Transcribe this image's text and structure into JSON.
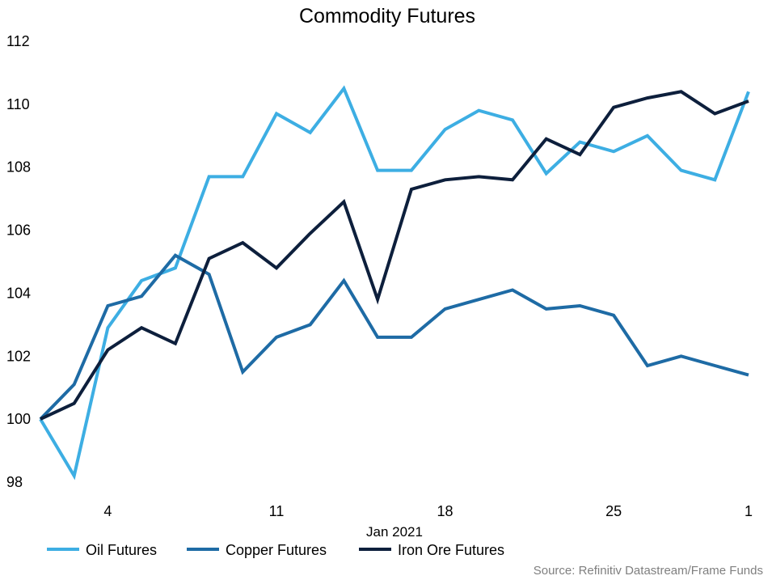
{
  "chart_data": {
    "type": "line",
    "title": "Commodity Futures",
    "xlabel": "Jan 2021",
    "ylabel": "",
    "ylim": [
      98,
      112
    ],
    "yticks": [
      98,
      100,
      102,
      104,
      106,
      108,
      110,
      112
    ],
    "xticks": [
      {
        "index": 2,
        "label": "4"
      },
      {
        "index": 7,
        "label": "11"
      },
      {
        "index": 12,
        "label": "18"
      },
      {
        "index": 17,
        "label": "25"
      },
      {
        "index": 21,
        "label": "1"
      }
    ],
    "grid": false,
    "legend_position": "bottom",
    "series": [
      {
        "name": "Oil Futures",
        "color": "#3daee3",
        "values": [
          100.0,
          98.2,
          102.9,
          104.4,
          104.8,
          107.7,
          107.7,
          109.7,
          109.1,
          110.5,
          107.9,
          107.9,
          109.2,
          109.8,
          109.5,
          107.8,
          108.8,
          108.5,
          109.0,
          107.9,
          107.6,
          110.4
        ]
      },
      {
        "name": "Copper Futures",
        "color": "#1e6ba5",
        "values": [
          100.0,
          101.1,
          103.6,
          103.9,
          105.2,
          104.6,
          101.5,
          102.6,
          103.0,
          104.4,
          102.6,
          102.6,
          103.5,
          103.8,
          104.1,
          103.5,
          103.6,
          103.3,
          101.7,
          102.0,
          101.7,
          101.4
        ]
      },
      {
        "name": "Iron Ore Futures",
        "color": "#0d1f3c",
        "values": [
          100.0,
          100.5,
          102.2,
          102.9,
          102.4,
          105.1,
          105.6,
          104.8,
          105.9,
          106.9,
          103.8,
          107.3,
          107.6,
          107.7,
          107.6,
          108.9,
          108.4,
          109.9,
          110.2,
          110.4,
          109.7,
          110.1
        ]
      }
    ]
  },
  "source_note": "Source: Refinitiv Datastream/Frame Funds"
}
